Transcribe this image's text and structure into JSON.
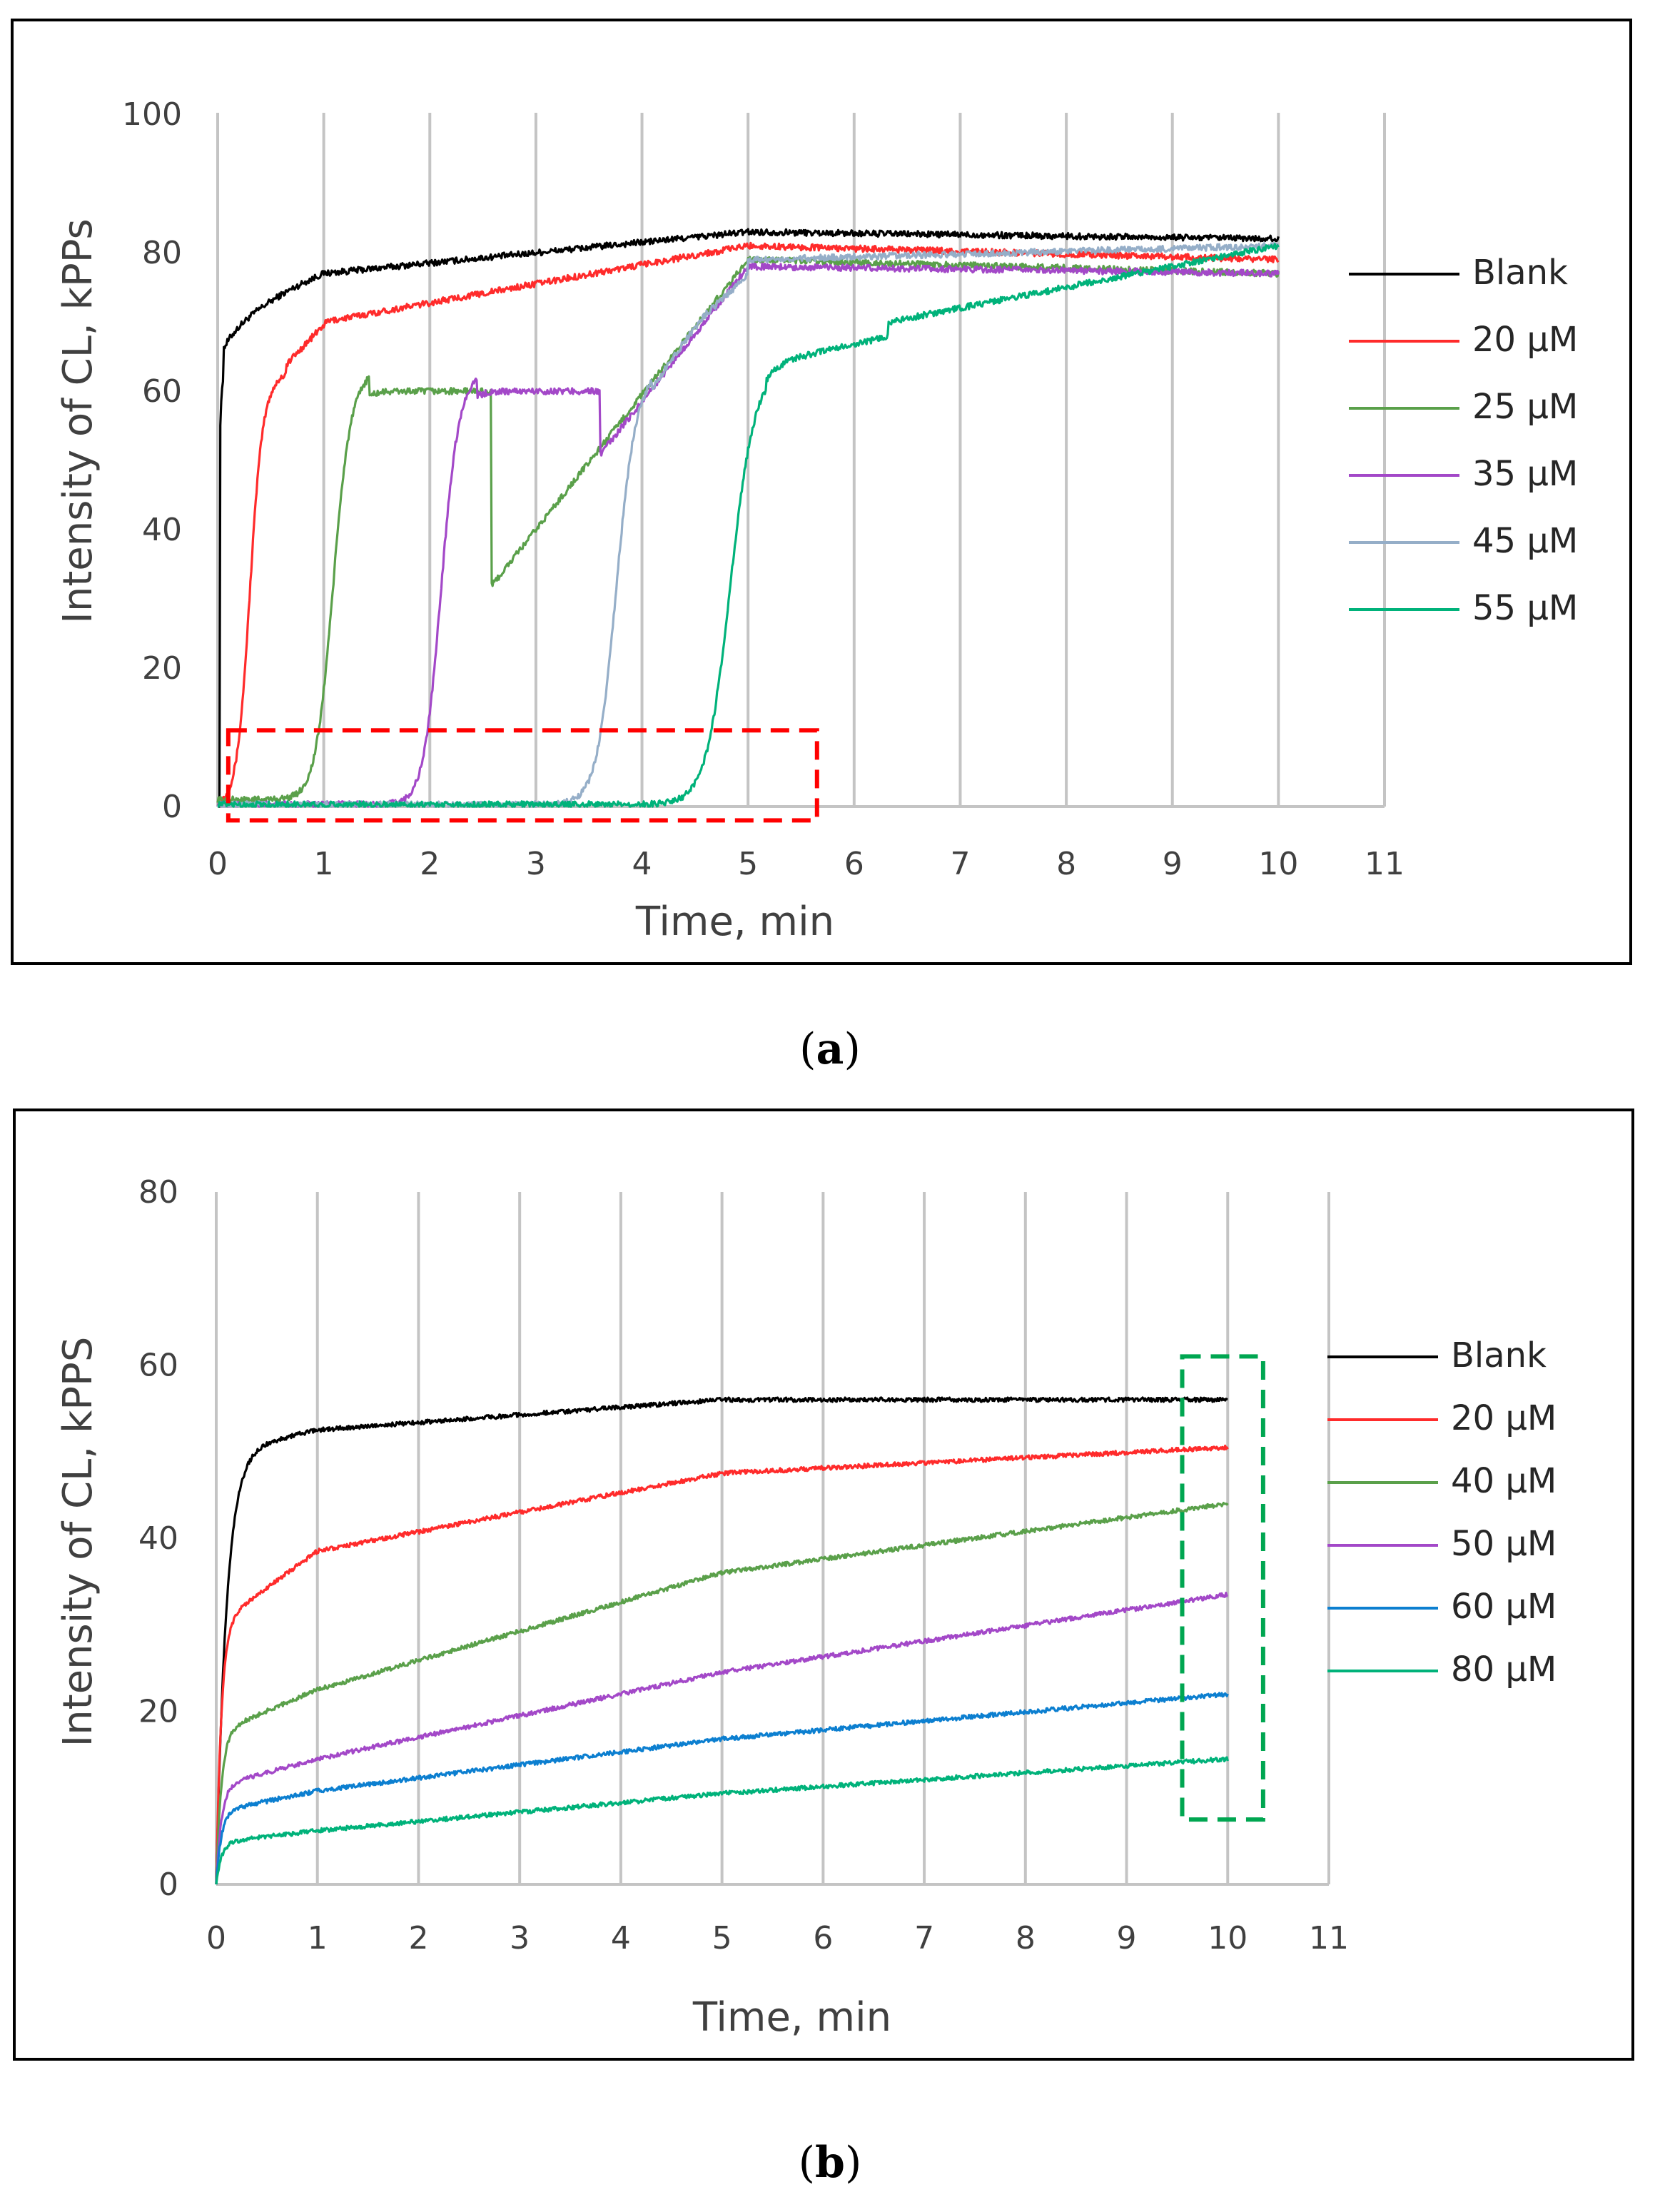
{
  "chart_data": [
    {
      "panel": "a",
      "type": "line",
      "panel_label": {
        "open": "(",
        "letter": "a",
        "close": ")"
      },
      "xlabel": "Time, min",
      "ylabel": "Intensity of CL, kPPs",
      "xlim": [
        0,
        11
      ],
      "ylim": [
        0,
        100
      ],
      "xticks": [
        "0",
        "1",
        "2",
        "3",
        "4",
        "5",
        "6",
        "7",
        "8",
        "9",
        "10",
        "11"
      ],
      "yticks": [
        "0",
        "20",
        "40",
        "60",
        "80",
        "100"
      ],
      "grid": "vertical",
      "highlight_box": {
        "color": "#ff0000",
        "x_range": [
          0.1,
          5.65
        ],
        "y_range": [
          -2,
          11
        ]
      },
      "series": [
        {
          "name": "Blank",
          "color": "#000000",
          "lag": 0.0,
          "midpoint": 0.0,
          "steepness": 0.1,
          "values_at_1_5_10_min": [
            77,
            83,
            82
          ]
        },
        {
          "name": "20 μM",
          "color": "#ff2b2b",
          "lag": 0.15,
          "midpoint": 0.3,
          "steepness": 0.06,
          "values_at_1_5_10_min": [
            70,
            81,
            79
          ]
        },
        {
          "name": "25 μM",
          "color": "#5aa04a",
          "lag": 0.8,
          "midpoint": 1.08,
          "steepness": 0.08,
          "values_at_1_5_10_min": [
            1,
            79,
            77
          ]
        },
        {
          "name": "35 μM",
          "color": "#a348c8",
          "lag": 1.85,
          "midpoint": 2.1,
          "steepness": 0.08,
          "values_at_1_5_10_min": [
            0,
            78,
            77
          ]
        },
        {
          "name": "45 μM",
          "color": "#95aec8",
          "lag": 3.45,
          "midpoint": 3.75,
          "steepness": 0.09,
          "values_at_1_5_10_min": [
            0,
            79,
            81
          ]
        },
        {
          "name": "55 μM",
          "color": "#00b27a",
          "lag": 4.4,
          "midpoint": 4.82,
          "steepness": 0.11,
          "values_at_1_5_10_min": [
            0,
            66,
            81
          ]
        }
      ]
    },
    {
      "panel": "b",
      "type": "line",
      "panel_label": {
        "open": "(",
        "letter": "b",
        "close": ")"
      },
      "xlabel": "Time, min",
      "ylabel": "Intensity of CL, kPPS",
      "xlim": [
        0,
        11
      ],
      "ylim": [
        0,
        80
      ],
      "xticks": [
        "0",
        "1",
        "2",
        "3",
        "4",
        "5",
        "6",
        "7",
        "8",
        "9",
        "10",
        "11"
      ],
      "yticks": [
        "0",
        "20",
        "40",
        "60",
        "80"
      ],
      "grid": "vertical",
      "highlight_box": {
        "color": "#00a651",
        "x_range": [
          9.55,
          10.35
        ],
        "y_range": [
          7.5,
          61
        ]
      },
      "series": [
        {
          "name": "Blank",
          "color": "#000000",
          "values_at_1_5_10_min": [
            52.5,
            56,
            56
          ]
        },
        {
          "name": "20  μM",
          "color": "#ff2b2b",
          "values_at_1_5_10_min": [
            38.5,
            47.5,
            50.5
          ]
        },
        {
          "name": "40  μM",
          "color": "#5aa04a",
          "values_at_1_5_10_min": [
            22.5,
            36,
            44
          ]
        },
        {
          "name": "50  μM",
          "color": "#a348c8",
          "values_at_1_5_10_min": [
            14.5,
            24.5,
            33.5
          ]
        },
        {
          "name": "60  μM",
          "color": "#0c7fd0",
          "values_at_1_5_10_min": [
            10.8,
            16.8,
            22
          ]
        },
        {
          "name": "80 μM",
          "color": "#00b27a",
          "values_at_1_5_10_min": [
            6.2,
            10.5,
            14.5
          ]
        }
      ]
    }
  ]
}
